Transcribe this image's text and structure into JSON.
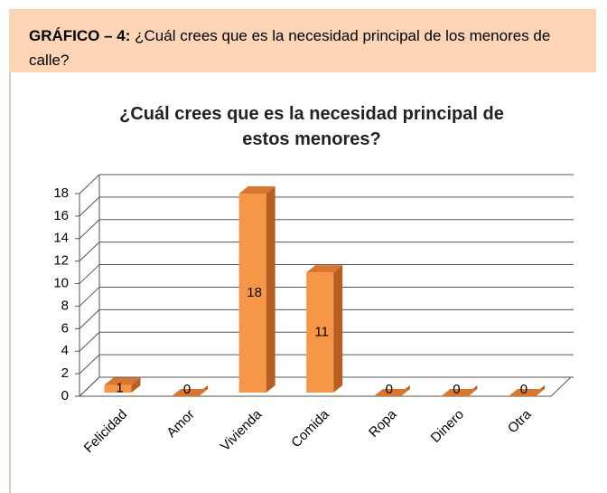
{
  "header": {
    "label": "GRÁFICO – 4:",
    "text": "¿Cuál crees que es la necesidad principal de los menores de calle?"
  },
  "chart_data": {
    "type": "bar",
    "title": "¿Cuál crees que es la necesidad principal de estos menores?",
    "categories": [
      "Felicidad",
      "Amor",
      "Vivienda",
      "Comida",
      "Ropa",
      "Dinero",
      "Otra"
    ],
    "values": [
      1,
      0,
      18,
      11,
      0,
      0,
      0
    ],
    "color": "#f79646",
    "ylim": [
      0,
      18
    ],
    "yticks": [
      0,
      2,
      4,
      6,
      8,
      10,
      12,
      14,
      16,
      18
    ],
    "grid": true
  }
}
